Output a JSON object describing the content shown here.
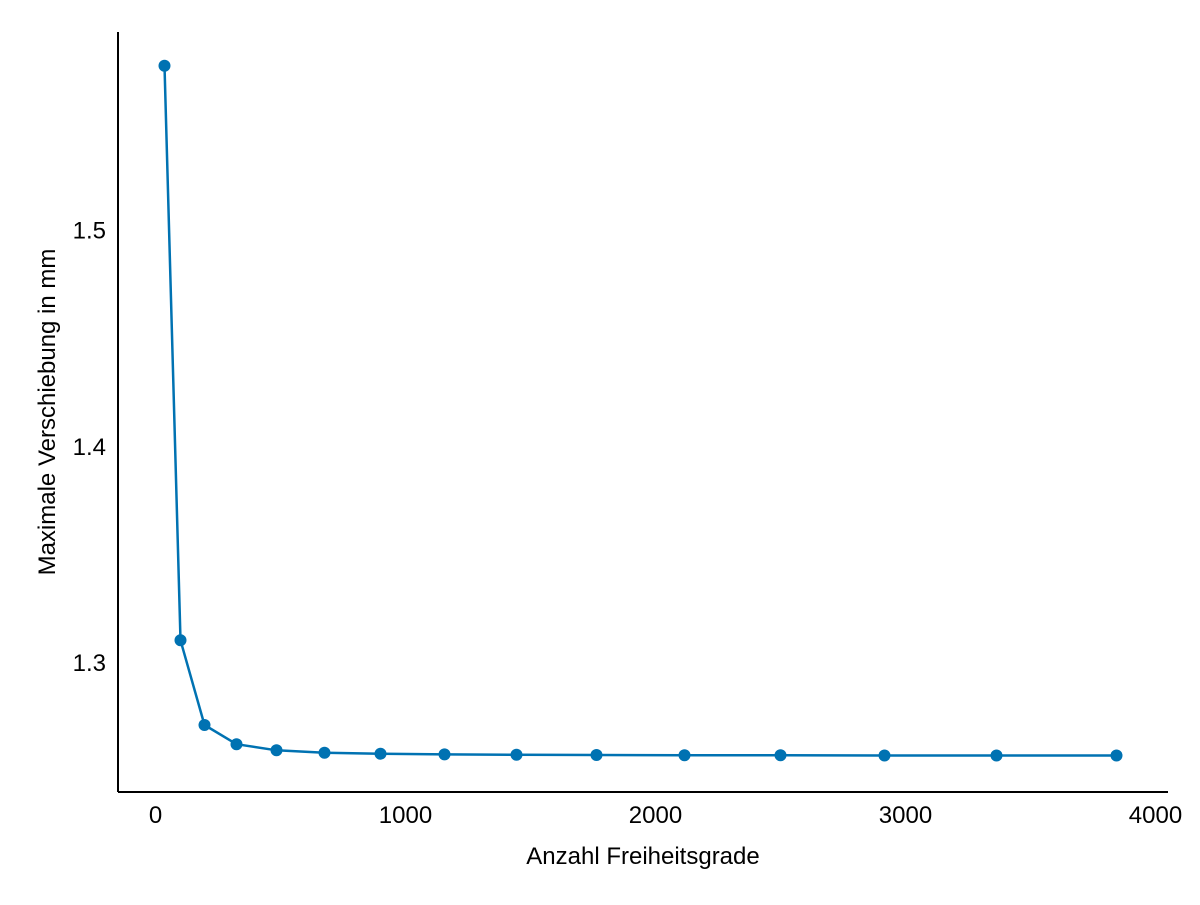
{
  "chart_data": {
    "type": "line",
    "title": "",
    "xlabel": "Anzahl Freiheitsgrade",
    "ylabel": "Maximale Verschiebung in mm",
    "xlim": [
      -150,
      4050
    ],
    "ylim": [
      1.2403,
      1.5919
    ],
    "xticks": [
      0,
      1000,
      2000,
      3000,
      4000
    ],
    "xtick_labels": [
      "0",
      "1000",
      "2000",
      "3000",
      "4000"
    ],
    "yticks": [
      1.3,
      1.4,
      1.5
    ],
    "ytick_labels": [
      "1.3",
      "1.4",
      "1.5"
    ],
    "grid": false,
    "series": [
      {
        "color": "#0072b2",
        "marker": "circle",
        "x": [
          36,
          100,
          196,
          324,
          484,
          676,
          900,
          1156,
          1444,
          1764,
          2116,
          2500,
          2916,
          3364,
          3844
        ],
        "y": [
          1.5763,
          1.3105,
          1.2713,
          1.2624,
          1.2596,
          1.2585,
          1.258,
          1.2577,
          1.2575,
          1.2574,
          1.2573,
          1.2573,
          1.2572,
          1.2572,
          1.2572
        ]
      }
    ]
  }
}
